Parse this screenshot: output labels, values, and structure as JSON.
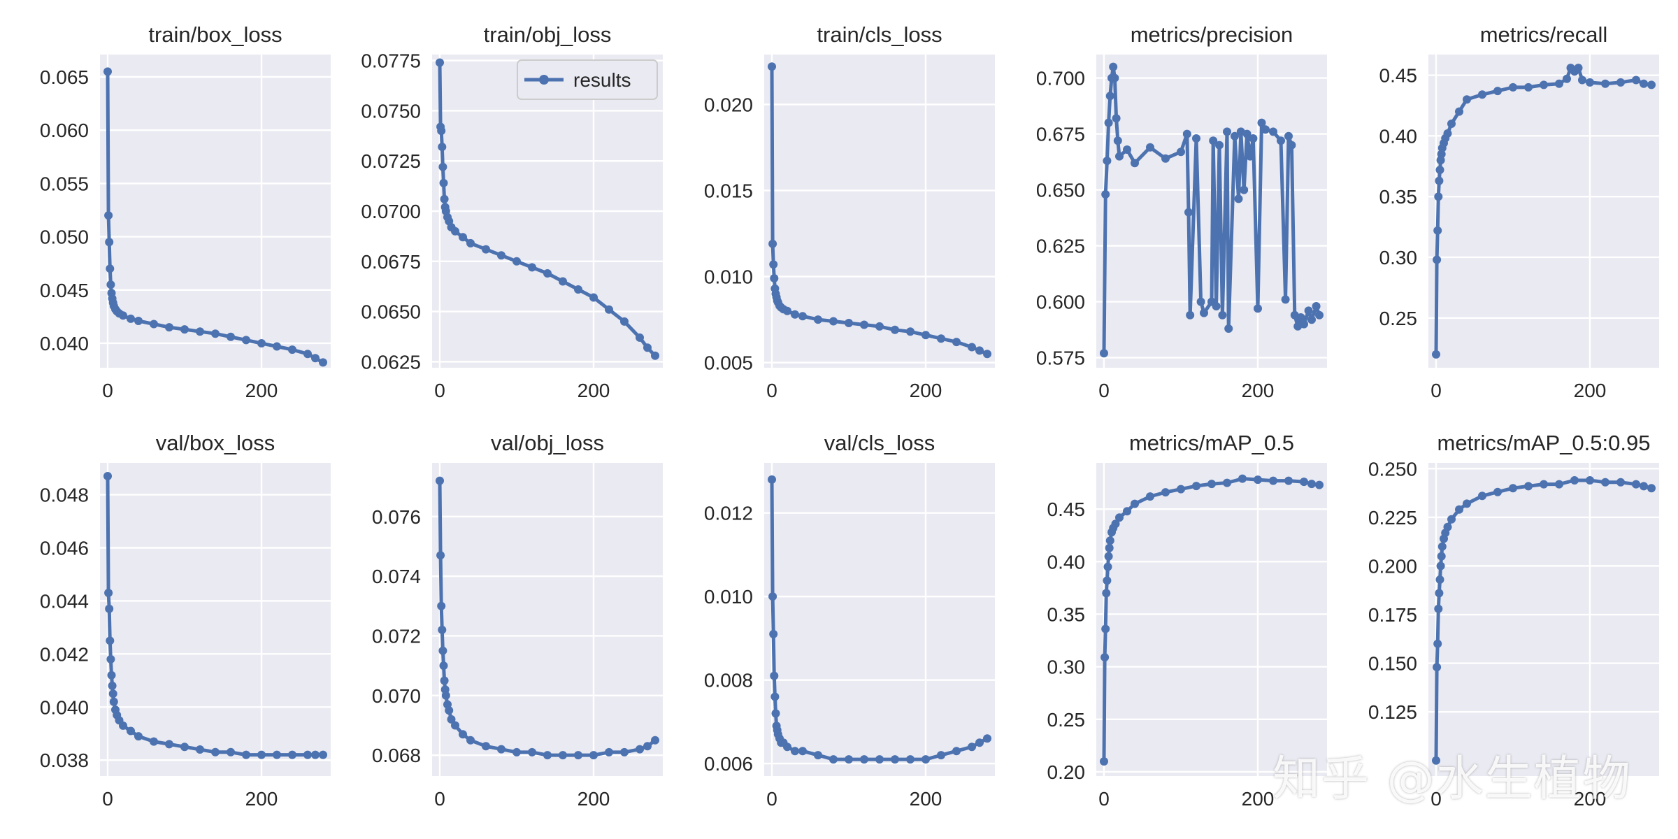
{
  "figure": {
    "colors": {
      "series": "#4c72b0",
      "panel_bg": "#eaeaf2",
      "grid": "#ffffff",
      "text": "#262626"
    },
    "legend_label": "results",
    "watermark": "知乎 @水生植物"
  },
  "chart_data": [
    {
      "type": "line",
      "title": "train/box_loss",
      "xlim": [
        -10,
        290
      ],
      "ylim": [
        0.0377,
        0.0671
      ],
      "xticks": [
        0,
        200
      ],
      "yticks": [
        0.04,
        0.045,
        0.05,
        0.055,
        0.06,
        0.065
      ],
      "ytick_labels": [
        "0.040",
        "0.045",
        "0.050",
        "0.055",
        "0.060",
        "0.065"
      ],
      "series": [
        {
          "name": "results",
          "x": [
            0,
            1,
            2,
            3,
            4,
            5,
            6,
            7,
            8,
            10,
            12,
            15,
            20,
            30,
            40,
            60,
            80,
            100,
            120,
            140,
            160,
            180,
            200,
            220,
            240,
            260,
            270,
            280
          ],
          "y": [
            0.0655,
            0.052,
            0.0495,
            0.047,
            0.0455,
            0.0447,
            0.0442,
            0.0438,
            0.0435,
            0.0432,
            0.043,
            0.0428,
            0.0426,
            0.0423,
            0.0421,
            0.0418,
            0.0415,
            0.0413,
            0.0411,
            0.0409,
            0.0406,
            0.0403,
            0.04,
            0.0397,
            0.0394,
            0.039,
            0.0386,
            0.0382
          ]
        }
      ]
    },
    {
      "type": "line",
      "title": "train/obj_loss",
      "xlim": [
        -10,
        290
      ],
      "ylim": [
        0.0622,
        0.0778
      ],
      "xticks": [
        0,
        200
      ],
      "yticks": [
        0.0625,
        0.065,
        0.0675,
        0.07,
        0.0725,
        0.075,
        0.0775
      ],
      "ytick_labels": [
        "0.0625",
        "0.0650",
        "0.0675",
        "0.0700",
        "0.0725",
        "0.0750",
        "0.0775"
      ],
      "legend": true,
      "series": [
        {
          "name": "results",
          "x": [
            0,
            1,
            2,
            3,
            4,
            5,
            6,
            7,
            8,
            10,
            12,
            15,
            20,
            30,
            40,
            60,
            80,
            100,
            120,
            140,
            160,
            180,
            200,
            220,
            240,
            260,
            270,
            280
          ],
          "y": [
            0.0774,
            0.0742,
            0.074,
            0.0732,
            0.0722,
            0.0714,
            0.0706,
            0.0702,
            0.07,
            0.0697,
            0.0695,
            0.0692,
            0.069,
            0.0687,
            0.0684,
            0.0681,
            0.0678,
            0.0675,
            0.0672,
            0.0669,
            0.0665,
            0.0661,
            0.0657,
            0.0651,
            0.0645,
            0.0637,
            0.0632,
            0.0628
          ]
        }
      ]
    },
    {
      "type": "line",
      "title": "train/cls_loss",
      "xlim": [
        -10,
        290
      ],
      "ylim": [
        0.0047,
        0.0229
      ],
      "xticks": [
        0,
        200
      ],
      "yticks": [
        0.005,
        0.01,
        0.015,
        0.02
      ],
      "ytick_labels": [
        "0.005",
        "0.010",
        "0.015",
        "0.020"
      ],
      "series": [
        {
          "name": "results",
          "x": [
            0,
            1,
            2,
            3,
            4,
            5,
            6,
            7,
            8,
            10,
            12,
            15,
            20,
            30,
            40,
            60,
            80,
            100,
            120,
            140,
            160,
            180,
            200,
            220,
            240,
            260,
            270,
            280
          ],
          "y": [
            0.0222,
            0.0119,
            0.0107,
            0.0099,
            0.0093,
            0.009,
            0.0088,
            0.0086,
            0.0085,
            0.0083,
            0.0082,
            0.0081,
            0.008,
            0.0078,
            0.0077,
            0.0075,
            0.0074,
            0.0073,
            0.0072,
            0.0071,
            0.0069,
            0.0068,
            0.0066,
            0.0064,
            0.0062,
            0.0059,
            0.0057,
            0.0055
          ]
        }
      ]
    },
    {
      "type": "line",
      "title": "metrics/precision",
      "xlim": [
        -10,
        290
      ],
      "ylim": [
        0.5705,
        0.7105
      ],
      "xticks": [
        0,
        200
      ],
      "yticks": [
        0.575,
        0.6,
        0.625,
        0.65,
        0.675,
        0.7
      ],
      "ytick_labels": [
        "0.575",
        "0.600",
        "0.625",
        "0.650",
        "0.675",
        "0.700"
      ],
      "series": [
        {
          "name": "results",
          "x": [
            0,
            2,
            4,
            6,
            8,
            10,
            12,
            14,
            16,
            18,
            20,
            30,
            40,
            60,
            80,
            100,
            108,
            110,
            112,
            120,
            126,
            130,
            140,
            142,
            146,
            150,
            154,
            160,
            162,
            170,
            175,
            178,
            182,
            186,
            190,
            194,
            200,
            205,
            210,
            220,
            230,
            236,
            240,
            244,
            248,
            252,
            256,
            260,
            266,
            270,
            276,
            280
          ],
          "y": [
            0.577,
            0.648,
            0.663,
            0.68,
            0.692,
            0.7,
            0.705,
            0.7,
            0.682,
            0.672,
            0.665,
            0.668,
            0.662,
            0.669,
            0.664,
            0.667,
            0.675,
            0.64,
            0.594,
            0.673,
            0.6,
            0.595,
            0.6,
            0.672,
            0.598,
            0.67,
            0.594,
            0.676,
            0.588,
            0.674,
            0.646,
            0.676,
            0.65,
            0.675,
            0.665,
            0.673,
            0.597,
            0.68,
            0.677,
            0.676,
            0.672,
            0.601,
            0.674,
            0.67,
            0.594,
            0.589,
            0.593,
            0.59,
            0.596,
            0.592,
            0.598,
            0.594
          ]
        }
      ]
    },
    {
      "type": "line",
      "title": "metrics/recall",
      "xlim": [
        -10,
        290
      ],
      "ylim": [
        0.209,
        0.467
      ],
      "xticks": [
        0,
        200
      ],
      "yticks": [
        0.25,
        0.3,
        0.35,
        0.4,
        0.45
      ],
      "ytick_labels": [
        "0.25",
        "0.30",
        "0.35",
        "0.40",
        "0.45"
      ],
      "series": [
        {
          "name": "results",
          "x": [
            0,
            1,
            2,
            3,
            4,
            5,
            6,
            7,
            8,
            10,
            12,
            15,
            20,
            30,
            40,
            60,
            80,
            100,
            120,
            140,
            160,
            170,
            175,
            180,
            185,
            190,
            200,
            220,
            240,
            260,
            270,
            280
          ],
          "y": [
            0.22,
            0.298,
            0.322,
            0.35,
            0.363,
            0.372,
            0.38,
            0.385,
            0.39,
            0.394,
            0.398,
            0.402,
            0.41,
            0.42,
            0.43,
            0.434,
            0.437,
            0.44,
            0.44,
            0.442,
            0.443,
            0.447,
            0.456,
            0.453,
            0.456,
            0.446,
            0.444,
            0.443,
            0.444,
            0.446,
            0.443,
            0.442
          ]
        }
      ]
    },
    {
      "type": "line",
      "title": "val/box_loss",
      "xlim": [
        -10,
        290
      ],
      "ylim": [
        0.0374,
        0.0492
      ],
      "xticks": [
        0,
        200
      ],
      "yticks": [
        0.038,
        0.04,
        0.042,
        0.044,
        0.046,
        0.048
      ],
      "ytick_labels": [
        "0.038",
        "0.040",
        "0.042",
        "0.044",
        "0.046",
        "0.048"
      ],
      "series": [
        {
          "name": "results",
          "x": [
            0,
            1,
            2,
            3,
            4,
            5,
            6,
            7,
            8,
            10,
            12,
            15,
            20,
            30,
            40,
            60,
            80,
            100,
            120,
            140,
            160,
            180,
            200,
            220,
            240,
            260,
            270,
            280
          ],
          "y": [
            0.0487,
            0.0443,
            0.0437,
            0.0425,
            0.0418,
            0.0412,
            0.0408,
            0.0405,
            0.0402,
            0.0399,
            0.0397,
            0.0395,
            0.0393,
            0.0391,
            0.0389,
            0.0387,
            0.0386,
            0.0385,
            0.0384,
            0.0383,
            0.0383,
            0.0382,
            0.0382,
            0.0382,
            0.0382,
            0.0382,
            0.0382,
            0.0382
          ]
        }
      ]
    },
    {
      "type": "line",
      "title": "val/obj_loss",
      "xlim": [
        -10,
        290
      ],
      "ylim": [
        0.0673,
        0.0778
      ],
      "xticks": [
        0,
        200
      ],
      "yticks": [
        0.068,
        0.07,
        0.072,
        0.074,
        0.076
      ],
      "ytick_labels": [
        "0.068",
        "0.070",
        "0.072",
        "0.074",
        "0.076"
      ],
      "series": [
        {
          "name": "results",
          "x": [
            0,
            1,
            2,
            3,
            4,
            5,
            6,
            7,
            8,
            10,
            12,
            15,
            20,
            30,
            40,
            60,
            80,
            100,
            120,
            140,
            160,
            180,
            200,
            220,
            240,
            260,
            270,
            280
          ],
          "y": [
            0.0772,
            0.0747,
            0.073,
            0.0722,
            0.0715,
            0.071,
            0.0705,
            0.0702,
            0.07,
            0.0697,
            0.0695,
            0.0692,
            0.069,
            0.0687,
            0.0685,
            0.0683,
            0.0682,
            0.0681,
            0.0681,
            0.068,
            0.068,
            0.068,
            0.068,
            0.0681,
            0.0681,
            0.0682,
            0.0683,
            0.0685
          ]
        }
      ]
    },
    {
      "type": "line",
      "title": "val/cls_loss",
      "xlim": [
        -10,
        290
      ],
      "ylim": [
        0.0057,
        0.0132
      ],
      "xticks": [
        0,
        200
      ],
      "yticks": [
        0.006,
        0.008,
        0.01,
        0.012
      ],
      "ytick_labels": [
        "0.006",
        "0.008",
        "0.010",
        "0.012"
      ],
      "series": [
        {
          "name": "results",
          "x": [
            0,
            1,
            2,
            3,
            4,
            5,
            6,
            7,
            8,
            10,
            12,
            15,
            20,
            30,
            40,
            60,
            80,
            100,
            120,
            140,
            160,
            180,
            200,
            220,
            240,
            260,
            270,
            280
          ],
          "y": [
            0.0128,
            0.01,
            0.0091,
            0.0081,
            0.0076,
            0.0072,
            0.0069,
            0.0068,
            0.0067,
            0.0066,
            0.0065,
            0.0065,
            0.0064,
            0.0063,
            0.0063,
            0.0062,
            0.0061,
            0.0061,
            0.0061,
            0.0061,
            0.0061,
            0.0061,
            0.0061,
            0.0062,
            0.0063,
            0.0064,
            0.0065,
            0.0066
          ]
        }
      ]
    },
    {
      "type": "line",
      "title": "metrics/mAP_0.5",
      "xlim": [
        -10,
        290
      ],
      "ylim": [
        0.196,
        0.494
      ],
      "xticks": [
        0,
        200
      ],
      "yticks": [
        0.2,
        0.25,
        0.3,
        0.35,
        0.4,
        0.45
      ],
      "ytick_labels": [
        "0.20",
        "0.25",
        "0.30",
        "0.35",
        "0.40",
        "0.45"
      ],
      "series": [
        {
          "name": "results",
          "x": [
            0,
            1,
            2,
            3,
            4,
            5,
            6,
            7,
            8,
            10,
            12,
            15,
            20,
            30,
            40,
            60,
            80,
            100,
            120,
            140,
            160,
            180,
            200,
            220,
            240,
            260,
            270,
            280
          ],
          "y": [
            0.21,
            0.309,
            0.336,
            0.37,
            0.382,
            0.395,
            0.405,
            0.413,
            0.42,
            0.428,
            0.432,
            0.436,
            0.442,
            0.448,
            0.455,
            0.462,
            0.466,
            0.469,
            0.472,
            0.474,
            0.475,
            0.479,
            0.478,
            0.477,
            0.477,
            0.476,
            0.474,
            0.473
          ]
        }
      ]
    },
    {
      "type": "line",
      "title": "metrics/mAP_0.5:0.95",
      "xlim": [
        -10,
        290
      ],
      "ylim": [
        0.092,
        0.253
      ],
      "xticks": [
        0,
        200
      ],
      "yticks": [
        0.125,
        0.15,
        0.175,
        0.2,
        0.225,
        0.25
      ],
      "ytick_labels": [
        "0.125",
        "0.150",
        "0.175",
        "0.200",
        "0.225",
        "0.250"
      ],
      "series": [
        {
          "name": "results",
          "x": [
            0,
            1,
            2,
            3,
            4,
            5,
            6,
            7,
            8,
            10,
            12,
            15,
            20,
            30,
            40,
            60,
            80,
            100,
            120,
            140,
            160,
            180,
            200,
            220,
            240,
            260,
            270,
            280
          ],
          "y": [
            0.1,
            0.148,
            0.16,
            0.178,
            0.186,
            0.193,
            0.2,
            0.205,
            0.21,
            0.214,
            0.217,
            0.22,
            0.224,
            0.229,
            0.232,
            0.236,
            0.238,
            0.24,
            0.241,
            0.242,
            0.242,
            0.244,
            0.244,
            0.243,
            0.243,
            0.242,
            0.241,
            0.24
          ]
        }
      ]
    }
  ]
}
